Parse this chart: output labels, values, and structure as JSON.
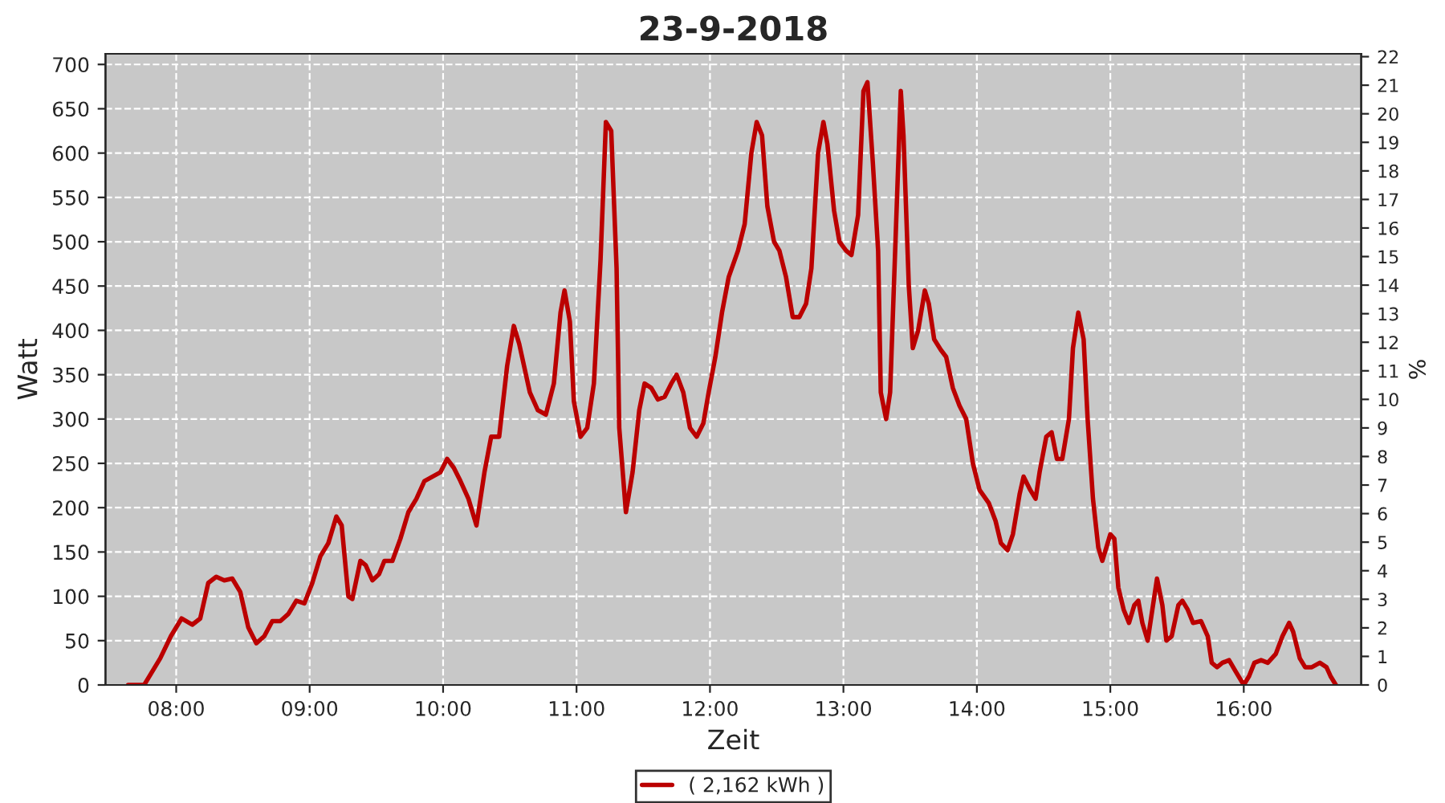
{
  "chart_data": {
    "type": "line",
    "title": "23-9-2018",
    "xlabel": "Zeit",
    "ylabel": "Watt",
    "y2label": "%",
    "x": [
      7.64,
      7.76,
      7.88,
      7.96,
      8.04,
      8.12,
      8.18,
      8.24,
      8.3,
      8.36,
      8.42,
      8.48,
      8.54,
      8.6,
      8.66,
      8.72,
      8.78,
      8.84,
      8.9,
      8.96,
      9.02,
      9.08,
      9.14,
      9.2,
      9.24,
      9.29,
      9.32,
      9.38,
      9.42,
      9.47,
      9.52,
      9.56,
      9.62,
      9.68,
      9.74,
      9.8,
      9.86,
      9.92,
      9.98,
      10.03,
      10.08,
      10.13,
      10.19,
      10.25,
      10.31,
      10.36,
      10.42,
      10.48,
      10.53,
      10.57,
      10.65,
      10.71,
      10.77,
      10.83,
      10.88,
      10.91,
      10.95,
      10.98,
      11.03,
      11.08,
      11.13,
      11.18,
      11.22,
      11.26,
      11.3,
      11.32,
      11.37,
      11.42,
      11.47,
      11.51,
      11.56,
      11.61,
      11.66,
      11.71,
      11.75,
      11.8,
      11.85,
      11.9,
      11.95,
      11.99,
      12.04,
      12.09,
      12.14,
      12.21,
      12.26,
      12.31,
      12.35,
      12.39,
      12.43,
      12.48,
      12.52,
      12.57,
      12.62,
      12.67,
      12.72,
      12.76,
      12.81,
      12.85,
      12.88,
      12.93,
      12.97,
      13.02,
      13.06,
      13.11,
      13.15,
      13.18,
      13.22,
      13.26,
      13.28,
      13.32,
      13.35,
      13.39,
      13.43,
      13.45,
      13.49,
      13.52,
      13.56,
      13.61,
      13.64,
      13.68,
      13.73,
      13.77,
      13.82,
      13.87,
      13.92,
      13.97,
      14.02,
      14.09,
      14.14,
      14.18,
      14.23,
      14.27,
      14.32,
      14.35,
      14.4,
      14.44,
      14.47,
      14.52,
      14.56,
      14.6,
      14.64,
      14.69,
      14.72,
      14.76,
      14.8,
      14.83,
      14.87,
      14.91,
      14.94,
      14.98,
      15.0,
      15.03,
      15.06,
      15.1,
      15.14,
      15.18,
      15.21,
      15.24,
      15.28,
      15.31,
      15.35,
      15.39,
      15.42,
      15.46,
      15.51,
      15.54,
      15.58,
      15.62,
      15.68,
      15.73,
      15.76,
      15.8,
      15.84,
      15.89,
      15.94,
      16.0,
      16.04,
      16.08,
      16.13,
      16.18,
      16.24,
      16.29,
      16.34,
      16.37,
      16.42,
      16.46,
      16.51,
      16.57,
      16.62,
      16.65,
      16.69
    ],
    "series": [
      {
        "name": "( 2,162 kWh )",
        "color": "#bb0000",
        "values": [
          0,
          0,
          30,
          55,
          75,
          68,
          75,
          115,
          122,
          118,
          120,
          105,
          65,
          47,
          55,
          72,
          72,
          80,
          95,
          92,
          115,
          145,
          160,
          190,
          180,
          100,
          97,
          140,
          135,
          118,
          125,
          140,
          140,
          165,
          195,
          210,
          230,
          235,
          240,
          255,
          245,
          230,
          210,
          180,
          240,
          280,
          280,
          360,
          405,
          385,
          330,
          310,
          305,
          340,
          420,
          445,
          410,
          320,
          280,
          290,
          340,
          480,
          635,
          625,
          470,
          290,
          195,
          240,
          310,
          340,
          335,
          322,
          325,
          340,
          350,
          330,
          290,
          280,
          295,
          330,
          370,
          420,
          460,
          490,
          520,
          600,
          635,
          620,
          540,
          500,
          490,
          460,
          415,
          415,
          430,
          470,
          600,
          635,
          610,
          535,
          500,
          490,
          485,
          530,
          670,
          680,
          590,
          490,
          330,
          300,
          330,
          500,
          670,
          620,
          450,
          380,
          400,
          445,
          430,
          390,
          378,
          370,
          335,
          315,
          300,
          250,
          220,
          205,
          185,
          160,
          152,
          170,
          215,
          235,
          220,
          210,
          240,
          280,
          285,
          255,
          255,
          300,
          380,
          420,
          390,
          300,
          210,
          155,
          140,
          160,
          170,
          165,
          110,
          85,
          70,
          90,
          95,
          70,
          50,
          80,
          120,
          90,
          50,
          55,
          90,
          95,
          85,
          70,
          72,
          55,
          25,
          20,
          25,
          28,
          15,
          0,
          10,
          25,
          28,
          25,
          35,
          55,
          70,
          60,
          30,
          20,
          20,
          25,
          20,
          10,
          0
        ]
      }
    ],
    "xlim": [
      7.47,
      16.88
    ],
    "xticks": [
      {
        "value": 8,
        "label": "08:00"
      },
      {
        "value": 9,
        "label": "09:00"
      },
      {
        "value": 10,
        "label": "10:00"
      },
      {
        "value": 11,
        "label": "11:00"
      },
      {
        "value": 12,
        "label": "12:00"
      },
      {
        "value": 13,
        "label": "13:00"
      },
      {
        "value": 14,
        "label": "14:00"
      },
      {
        "value": 15,
        "label": "15:00"
      },
      {
        "value": 16,
        "label": "16:00"
      }
    ],
    "ylim": [
      0,
      712
    ],
    "yticks": [
      0,
      50,
      100,
      150,
      200,
      250,
      300,
      350,
      400,
      450,
      500,
      550,
      600,
      650,
      700
    ],
    "y2lim": [
      0,
      22.1
    ],
    "y2ticks": [
      0,
      1,
      2,
      3,
      4,
      5,
      6,
      7,
      8,
      9,
      10,
      11,
      12,
      13,
      14,
      15,
      16,
      17,
      18,
      19,
      20,
      21,
      22
    ],
    "grid": true,
    "legend": "bottom",
    "line_style": "solid",
    "marker": "none"
  }
}
